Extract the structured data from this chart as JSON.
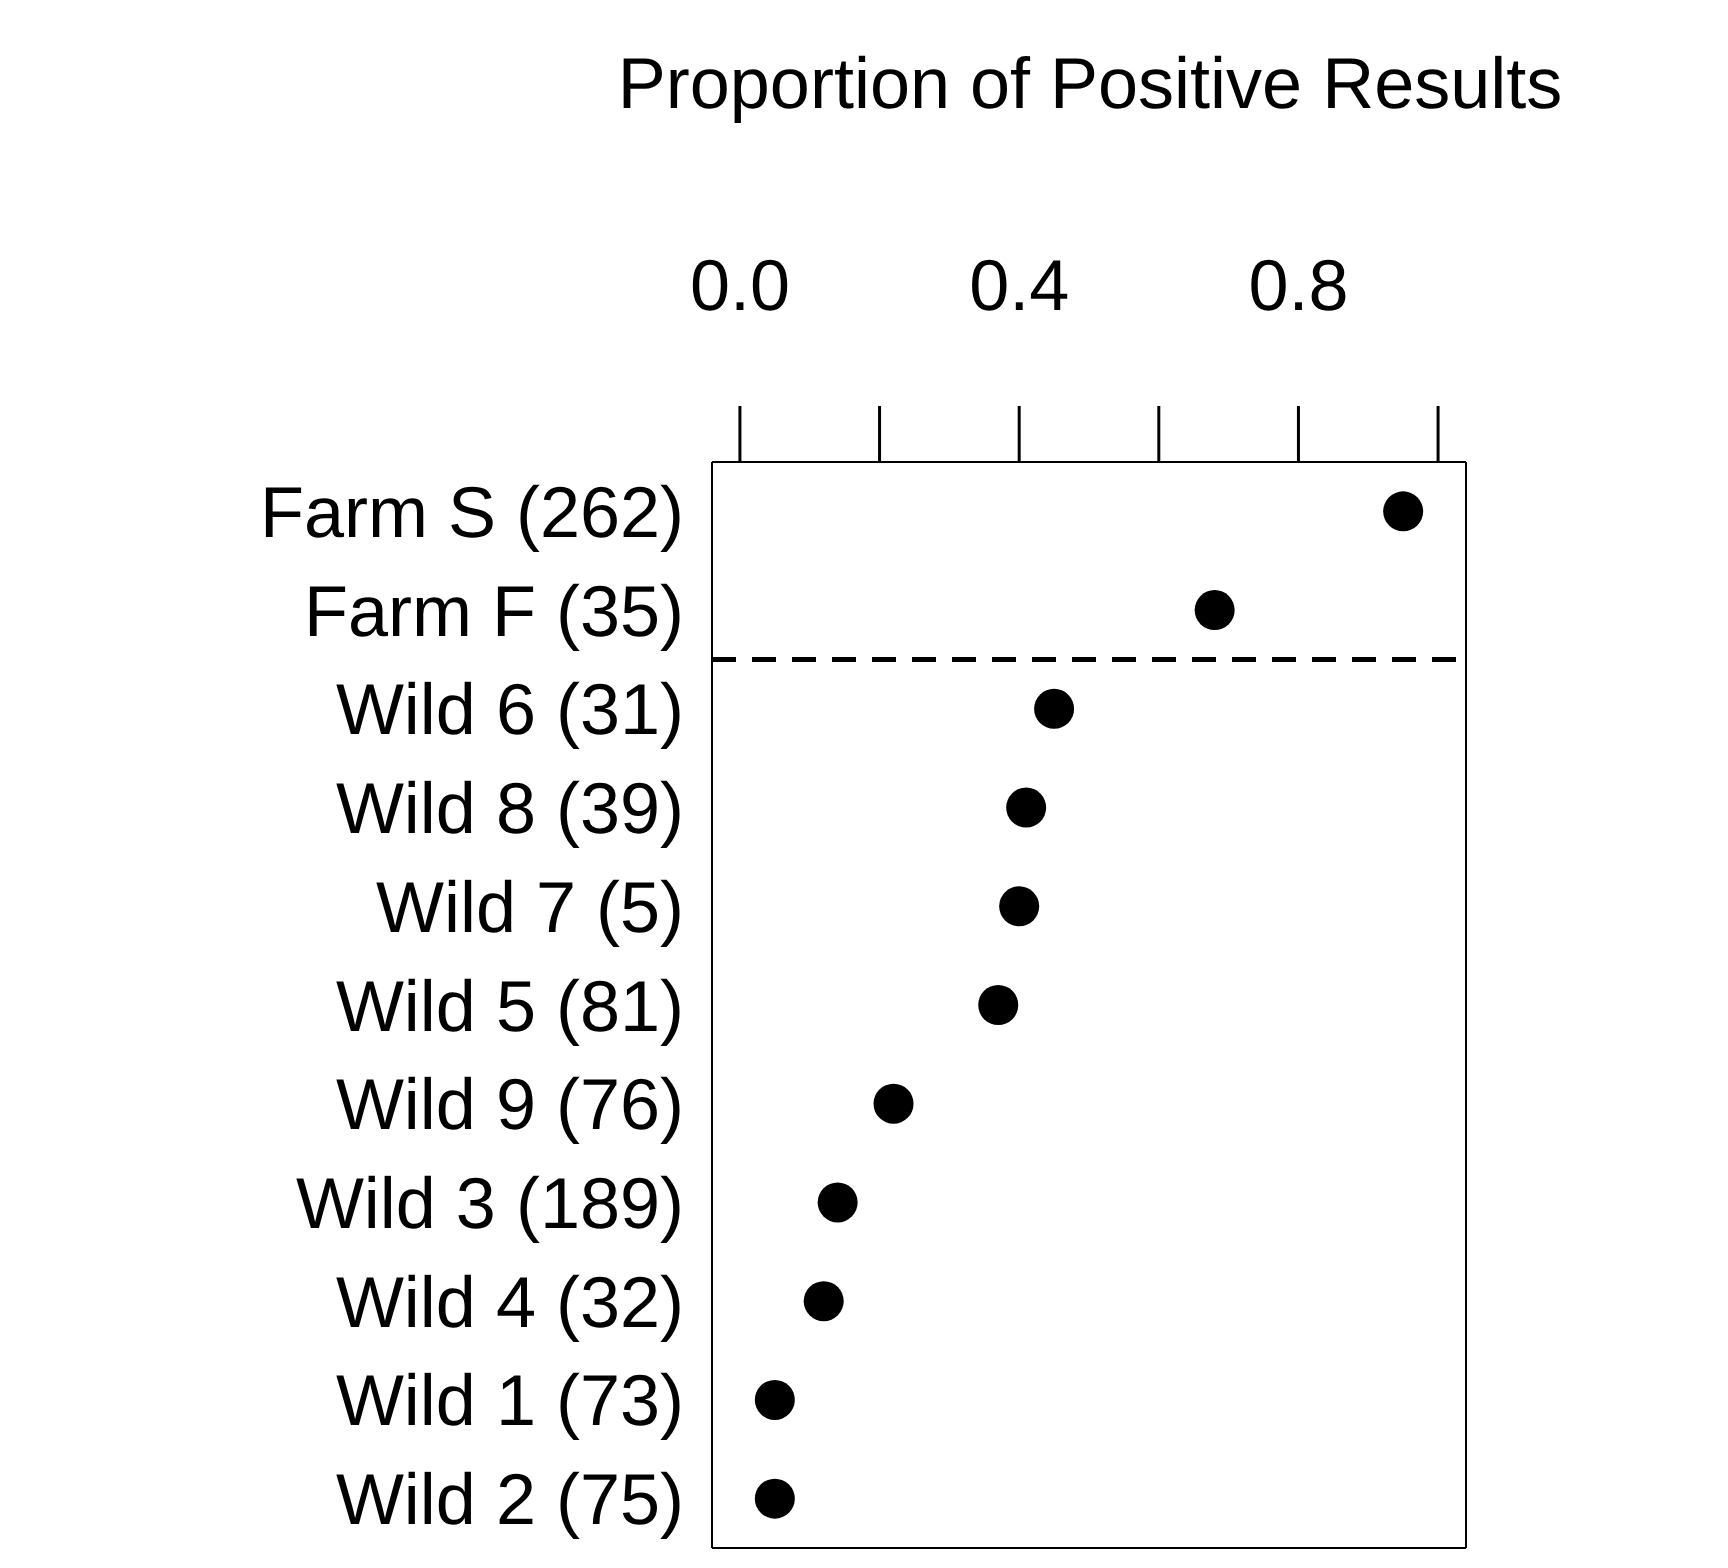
{
  "chart_data": {
    "type": "scatter",
    "xlabel": "Proportion of Positive Results",
    "categories": [
      "Farm S (262)",
      "Farm F (35)",
      "Wild 6 (31)",
      "Wild 8 (39)",
      "Wild 7 (5)",
      "Wild 5 (81)",
      "Wild 9 (76)",
      "Wild 3 (189)",
      "Wild 4 (32)",
      "Wild 1 (73)",
      "Wild 2 (75)"
    ],
    "orientation": "horizontal",
    "series": [
      {
        "color": "#000000",
        "values": [
          0.95,
          0.68,
          0.45,
          0.41,
          0.4,
          0.37,
          0.22,
          0.14,
          0.12,
          0.05,
          0.05
        ]
      }
    ],
    "xlim": [
      -0.04,
      1.04
    ],
    "xticks": [
      {
        "value": 0,
        "label": "0.0"
      },
      {
        "value": 0.4,
        "label": "0.4"
      },
      {
        "value": 0.8,
        "label": "0.8"
      }
    ],
    "marker": "circle"
  }
}
